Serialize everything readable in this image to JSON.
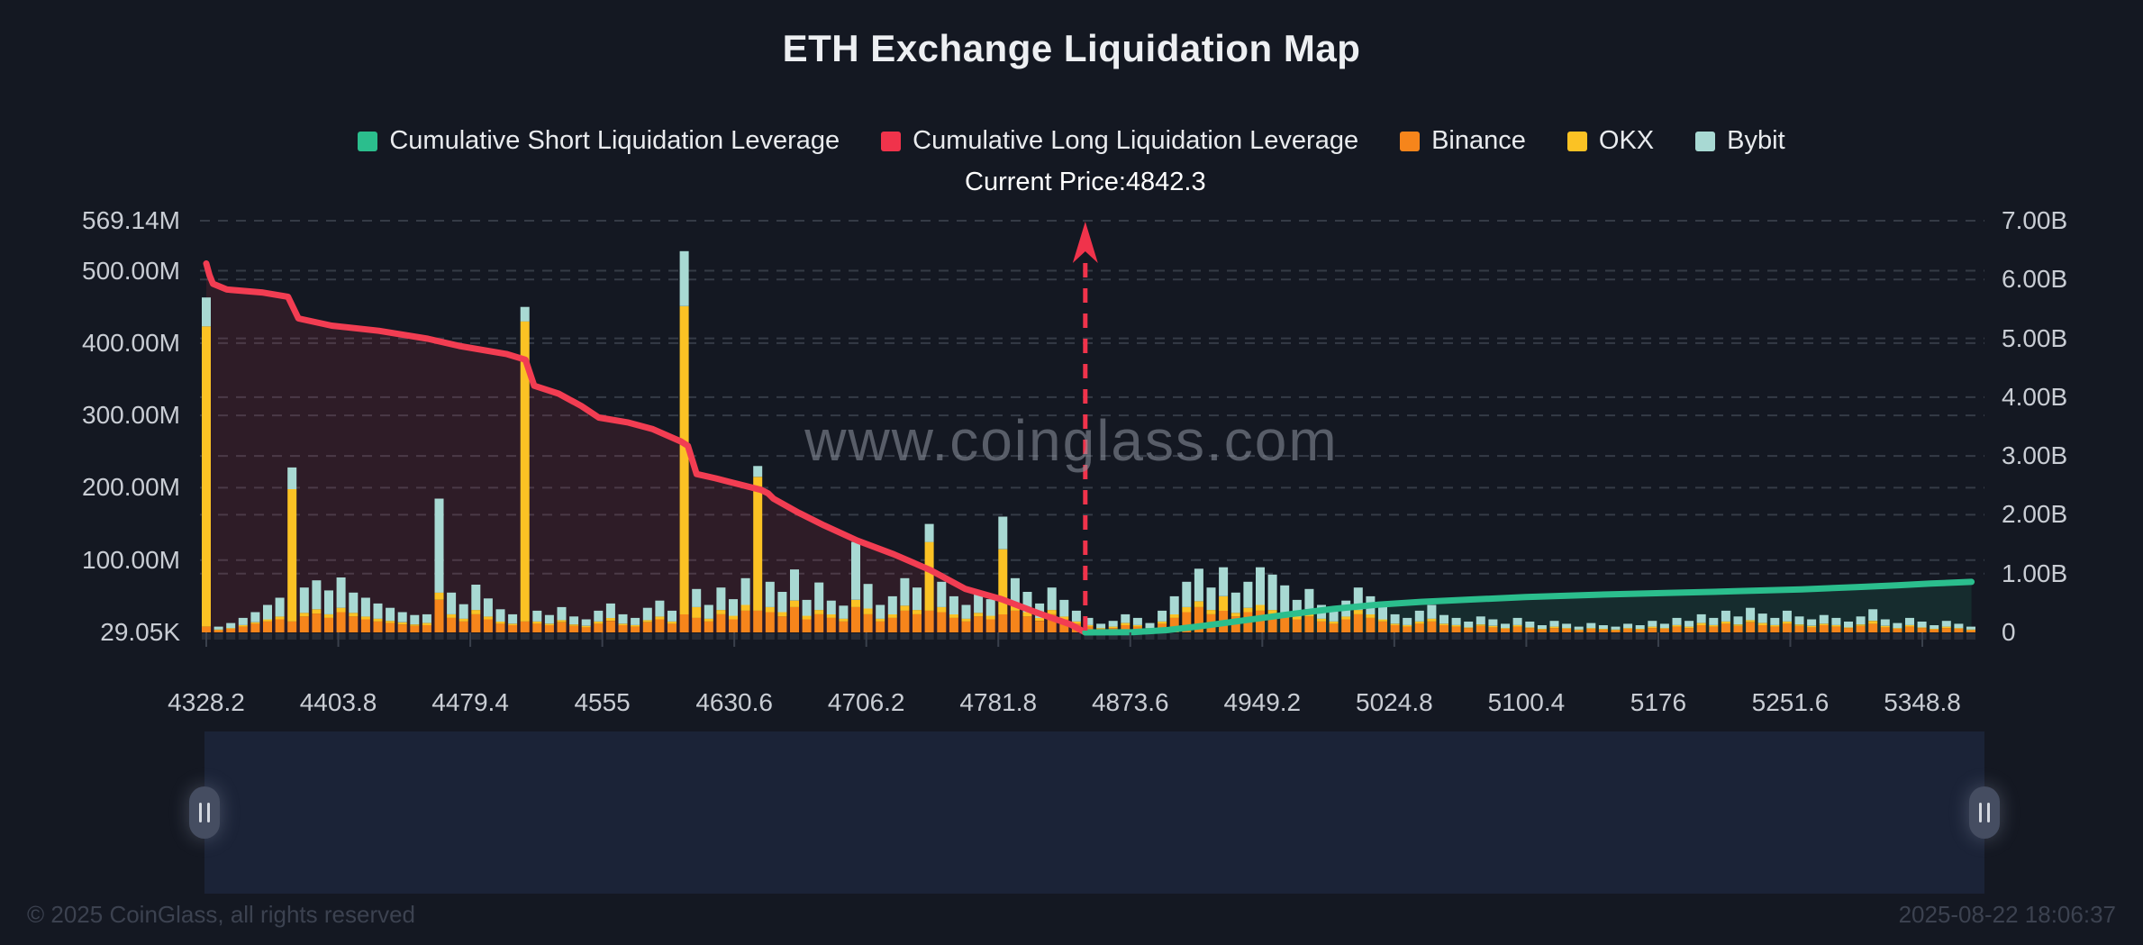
{
  "title": "ETH Exchange Liquidation Map",
  "watermark": "www.coinglass.com",
  "current_price_label": "Current Price:4842.3",
  "legend": [
    {
      "label": "Cumulative Short Liquidation Leverage",
      "color": "#2BBE8D",
      "key": "short"
    },
    {
      "label": "Cumulative Long Liquidation Leverage",
      "color": "#F0334B",
      "key": "long"
    },
    {
      "label": "Binance",
      "color": "#F6851B",
      "key": "binance"
    },
    {
      "label": "OKX",
      "color": "#FBC224",
      "key": "okx"
    },
    {
      "label": "Bybit",
      "color": "#A8D9D3",
      "key": "bybit"
    }
  ],
  "footer": {
    "copyright": "© 2025 CoinGlass, all rights reserved",
    "timestamp": "2025-08-22 18:06:37"
  },
  "colors": {
    "background": "#141822",
    "grid": "#3E4450",
    "long_line": "#F23D52",
    "long_fill": "rgba(242,61,82,0.12)",
    "short_line": "#2BBE8D",
    "short_fill": "rgba(43,190,141,0.12)",
    "binance": "#F6851B",
    "okx": "#FBC224",
    "bybit": "#A8D9D3",
    "current_price": "#F0334B",
    "axis_text": "#C9CDD4",
    "tick": "#3A404C",
    "bar_stub": "#272C37"
  },
  "chart_data": {
    "type": "bar",
    "subtype": "stacked-bars-with-cumulative-lines",
    "current_price": 4842.3,
    "left_axis": {
      "max": 569.14,
      "labels": [
        {
          "text": "569.14M",
          "value": 569.14
        },
        {
          "text": "500.00M",
          "value": 500
        },
        {
          "text": "400.00M",
          "value": 400
        },
        {
          "text": "300.00M",
          "value": 300
        },
        {
          "text": "200.00M",
          "value": 200
        },
        {
          "text": "100.00M",
          "value": 100
        },
        {
          "text": "29.05K",
          "value": 0.029
        }
      ]
    },
    "right_axis": {
      "max": 7,
      "labels": [
        {
          "text": "7.00B",
          "value": 7
        },
        {
          "text": "6.00B",
          "value": 6
        },
        {
          "text": "5.00B",
          "value": 5
        },
        {
          "text": "4.00B",
          "value": 4
        },
        {
          "text": "3.00B",
          "value": 3
        },
        {
          "text": "2.00B",
          "value": 2
        },
        {
          "text": "1.00B",
          "value": 1
        },
        {
          "text": "0",
          "value": 0
        }
      ]
    },
    "x_axis": {
      "ticks": [
        4328.2,
        4403.8,
        4479.4,
        4555,
        4630.6,
        4706.2,
        4781.8,
        4873.6,
        4949.2,
        5024.8,
        5100.4,
        5176,
        5251.6,
        5348.8
      ]
    },
    "bars": {
      "note": "stacked liquidation leverage per price bin, millions USD, estimated from pixels",
      "price_start": 4328.2,
      "price_end": 5385,
      "series_order": [
        "binance",
        "okx",
        "bybit"
      ],
      "values": [
        [
          8,
          415,
          40
        ],
        [
          3,
          1,
          4
        ],
        [
          5,
          1,
          7
        ],
        [
          8,
          2,
          10
        ],
        [
          12,
          2,
          14
        ],
        [
          15,
          3,
          20
        ],
        [
          18,
          4,
          26
        ],
        [
          15,
          183,
          30
        ],
        [
          22,
          5,
          35
        ],
        [
          26,
          6,
          40
        ],
        [
          20,
          5,
          33
        ],
        [
          28,
          6,
          42
        ],
        [
          22,
          5,
          28
        ],
        [
          18,
          4,
          26
        ],
        [
          15,
          4,
          21
        ],
        [
          13,
          3,
          18
        ],
        [
          11,
          3,
          14
        ],
        [
          9,
          2,
          13
        ],
        [
          10,
          3,
          12
        ],
        [
          45,
          10,
          130
        ],
        [
          20,
          5,
          30
        ],
        [
          15,
          4,
          20
        ],
        [
          25,
          6,
          35
        ],
        [
          18,
          4,
          25
        ],
        [
          12,
          3,
          17
        ],
        [
          10,
          2,
          13
        ],
        [
          15,
          415,
          20
        ],
        [
          12,
          3,
          15
        ],
        [
          10,
          2,
          12
        ],
        [
          14,
          3,
          18
        ],
        [
          9,
          2,
          11
        ],
        [
          7,
          2,
          9
        ],
        [
          12,
          3,
          15
        ],
        [
          16,
          4,
          20
        ],
        [
          10,
          2,
          13
        ],
        [
          8,
          2,
          10
        ],
        [
          14,
          3,
          17
        ],
        [
          18,
          4,
          22
        ],
        [
          12,
          3,
          15
        ],
        [
          25,
          426,
          76
        ],
        [
          20,
          15,
          25
        ],
        [
          15,
          4,
          19
        ],
        [
          25,
          6,
          31
        ],
        [
          18,
          5,
          23
        ],
        [
          30,
          8,
          37
        ],
        [
          30,
          185,
          15
        ],
        [
          28,
          7,
          35
        ],
        [
          22,
          6,
          28
        ],
        [
          35,
          9,
          43
        ],
        [
          18,
          5,
          22
        ],
        [
          25,
          6,
          38
        ],
        [
          20,
          5,
          19
        ],
        [
          15,
          4,
          18
        ],
        [
          35,
          10,
          80
        ],
        [
          25,
          8,
          34
        ],
        [
          15,
          4,
          19
        ],
        [
          20,
          5,
          25
        ],
        [
          30,
          7,
          38
        ],
        [
          25,
          6,
          31
        ],
        [
          30,
          95,
          25
        ],
        [
          28,
          7,
          35
        ],
        [
          20,
          5,
          25
        ],
        [
          15,
          4,
          19
        ],
        [
          22,
          5,
          28
        ],
        [
          18,
          5,
          23
        ],
        [
          25,
          90,
          45
        ],
        [
          30,
          8,
          37
        ],
        [
          22,
          6,
          28
        ],
        [
          16,
          4,
          20
        ],
        [
          25,
          6,
          31
        ],
        [
          18,
          4,
          23
        ],
        [
          12,
          3,
          15
        ],
        [
          8,
          2,
          10
        ],
        [
          5,
          1,
          6
        ],
        [
          6,
          2,
          8
        ],
        [
          10,
          3,
          12
        ],
        [
          8,
          2,
          10
        ],
        [
          5,
          1,
          7
        ],
        [
          12,
          3,
          15
        ],
        [
          20,
          5,
          25
        ],
        [
          28,
          7,
          35
        ],
        [
          35,
          8,
          45
        ],
        [
          25,
          6,
          31
        ],
        [
          30,
          20,
          40
        ],
        [
          22,
          5,
          28
        ],
        [
          28,
          6,
          36
        ],
        [
          30,
          8,
          52
        ],
        [
          25,
          6,
          49
        ],
        [
          20,
          5,
          40
        ],
        [
          18,
          4,
          23
        ],
        [
          22,
          10,
          28
        ],
        [
          15,
          4,
          19
        ],
        [
          12,
          3,
          15
        ],
        [
          18,
          4,
          22
        ],
        [
          25,
          6,
          31
        ],
        [
          20,
          5,
          25
        ],
        [
          15,
          3,
          18
        ],
        [
          10,
          2,
          13
        ],
        [
          8,
          2,
          10
        ],
        [
          12,
          3,
          15
        ],
        [
          15,
          4,
          19
        ],
        [
          10,
          2,
          12
        ],
        [
          8,
          2,
          10
        ],
        [
          6,
          1,
          8
        ],
        [
          9,
          2,
          11
        ],
        [
          7,
          2,
          9
        ],
        [
          5,
          1,
          6
        ],
        [
          8,
          2,
          10
        ],
        [
          6,
          1,
          8
        ],
        [
          4,
          1,
          5
        ],
        [
          6,
          2,
          8
        ],
        [
          5,
          1,
          6
        ],
        [
          3,
          1,
          4
        ],
        [
          5,
          1,
          7
        ],
        [
          4,
          1,
          5
        ],
        [
          3,
          1,
          4
        ],
        [
          5,
          1,
          6
        ],
        [
          4,
          1,
          5
        ],
        [
          6,
          2,
          8
        ],
        [
          5,
          1,
          6
        ],
        [
          8,
          2,
          10
        ],
        [
          6,
          2,
          8
        ],
        [
          10,
          3,
          12
        ],
        [
          8,
          2,
          10
        ],
        [
          12,
          3,
          15
        ],
        [
          9,
          2,
          11
        ],
        [
          14,
          3,
          17
        ],
        [
          10,
          3,
          13
        ],
        [
          8,
          2,
          10
        ],
        [
          12,
          3,
          15
        ],
        [
          9,
          2,
          11
        ],
        [
          7,
          2,
          9
        ],
        [
          10,
          2,
          12
        ],
        [
          8,
          2,
          10
        ],
        [
          6,
          1,
          8
        ],
        [
          9,
          2,
          11
        ],
        [
          12,
          4,
          16
        ],
        [
          7,
          2,
          9
        ],
        [
          5,
          1,
          7
        ],
        [
          8,
          2,
          10
        ],
        [
          6,
          1,
          8
        ],
        [
          4,
          1,
          5
        ],
        [
          6,
          2,
          8
        ],
        [
          5,
          1,
          6
        ],
        [
          3,
          1,
          4
        ]
      ]
    },
    "long_line": {
      "name": "Cumulative Long Liquidation Leverage",
      "axis": "left",
      "units": "M",
      "points": [
        [
          4328.2,
          510
        ],
        [
          4330,
          494
        ],
        [
          4332,
          482
        ],
        [
          4340,
          474
        ],
        [
          4360,
          470
        ],
        [
          4375,
          464
        ],
        [
          4381,
          434
        ],
        [
          4400,
          424
        ],
        [
          4427,
          417
        ],
        [
          4455,
          406
        ],
        [
          4473,
          396
        ],
        [
          4500,
          385
        ],
        [
          4511,
          377
        ],
        [
          4516,
          341
        ],
        [
          4530,
          330
        ],
        [
          4543,
          313
        ],
        [
          4553,
          297
        ],
        [
          4570,
          290
        ],
        [
          4584,
          281
        ],
        [
          4600,
          264
        ],
        [
          4604,
          258
        ],
        [
          4609,
          219
        ],
        [
          4620,
          213
        ],
        [
          4628,
          208
        ],
        [
          4646,
          197
        ],
        [
          4650,
          192
        ],
        [
          4653,
          185
        ],
        [
          4667,
          166
        ],
        [
          4682,
          148
        ],
        [
          4701,
          127
        ],
        [
          4722,
          108
        ],
        [
          4743,
          86
        ],
        [
          4763,
          60
        ],
        [
          4784,
          46
        ],
        [
          4809,
          27
        ],
        [
          4832,
          11
        ],
        [
          4842.3,
          0
        ]
      ]
    },
    "short_line": {
      "name": "Cumulative Short Liquidation Leverage",
      "axis": "right",
      "units": "B",
      "points": [
        [
          4842.3,
          0
        ],
        [
          4875,
          0.005
        ],
        [
          4895,
          0.04
        ],
        [
          4915,
          0.11
        ],
        [
          4940,
          0.21
        ],
        [
          4965,
          0.31
        ],
        [
          4990,
          0.4
        ],
        [
          5015,
          0.47
        ],
        [
          5040,
          0.52
        ],
        [
          5070,
          0.56
        ],
        [
          5100,
          0.6
        ],
        [
          5140,
          0.64
        ],
        [
          5180,
          0.67
        ],
        [
          5220,
          0.7
        ],
        [
          5260,
          0.73
        ],
        [
          5300,
          0.77
        ],
        [
          5330,
          0.8
        ],
        [
          5355,
          0.83
        ],
        [
          5385,
          0.86
        ]
      ]
    }
  }
}
